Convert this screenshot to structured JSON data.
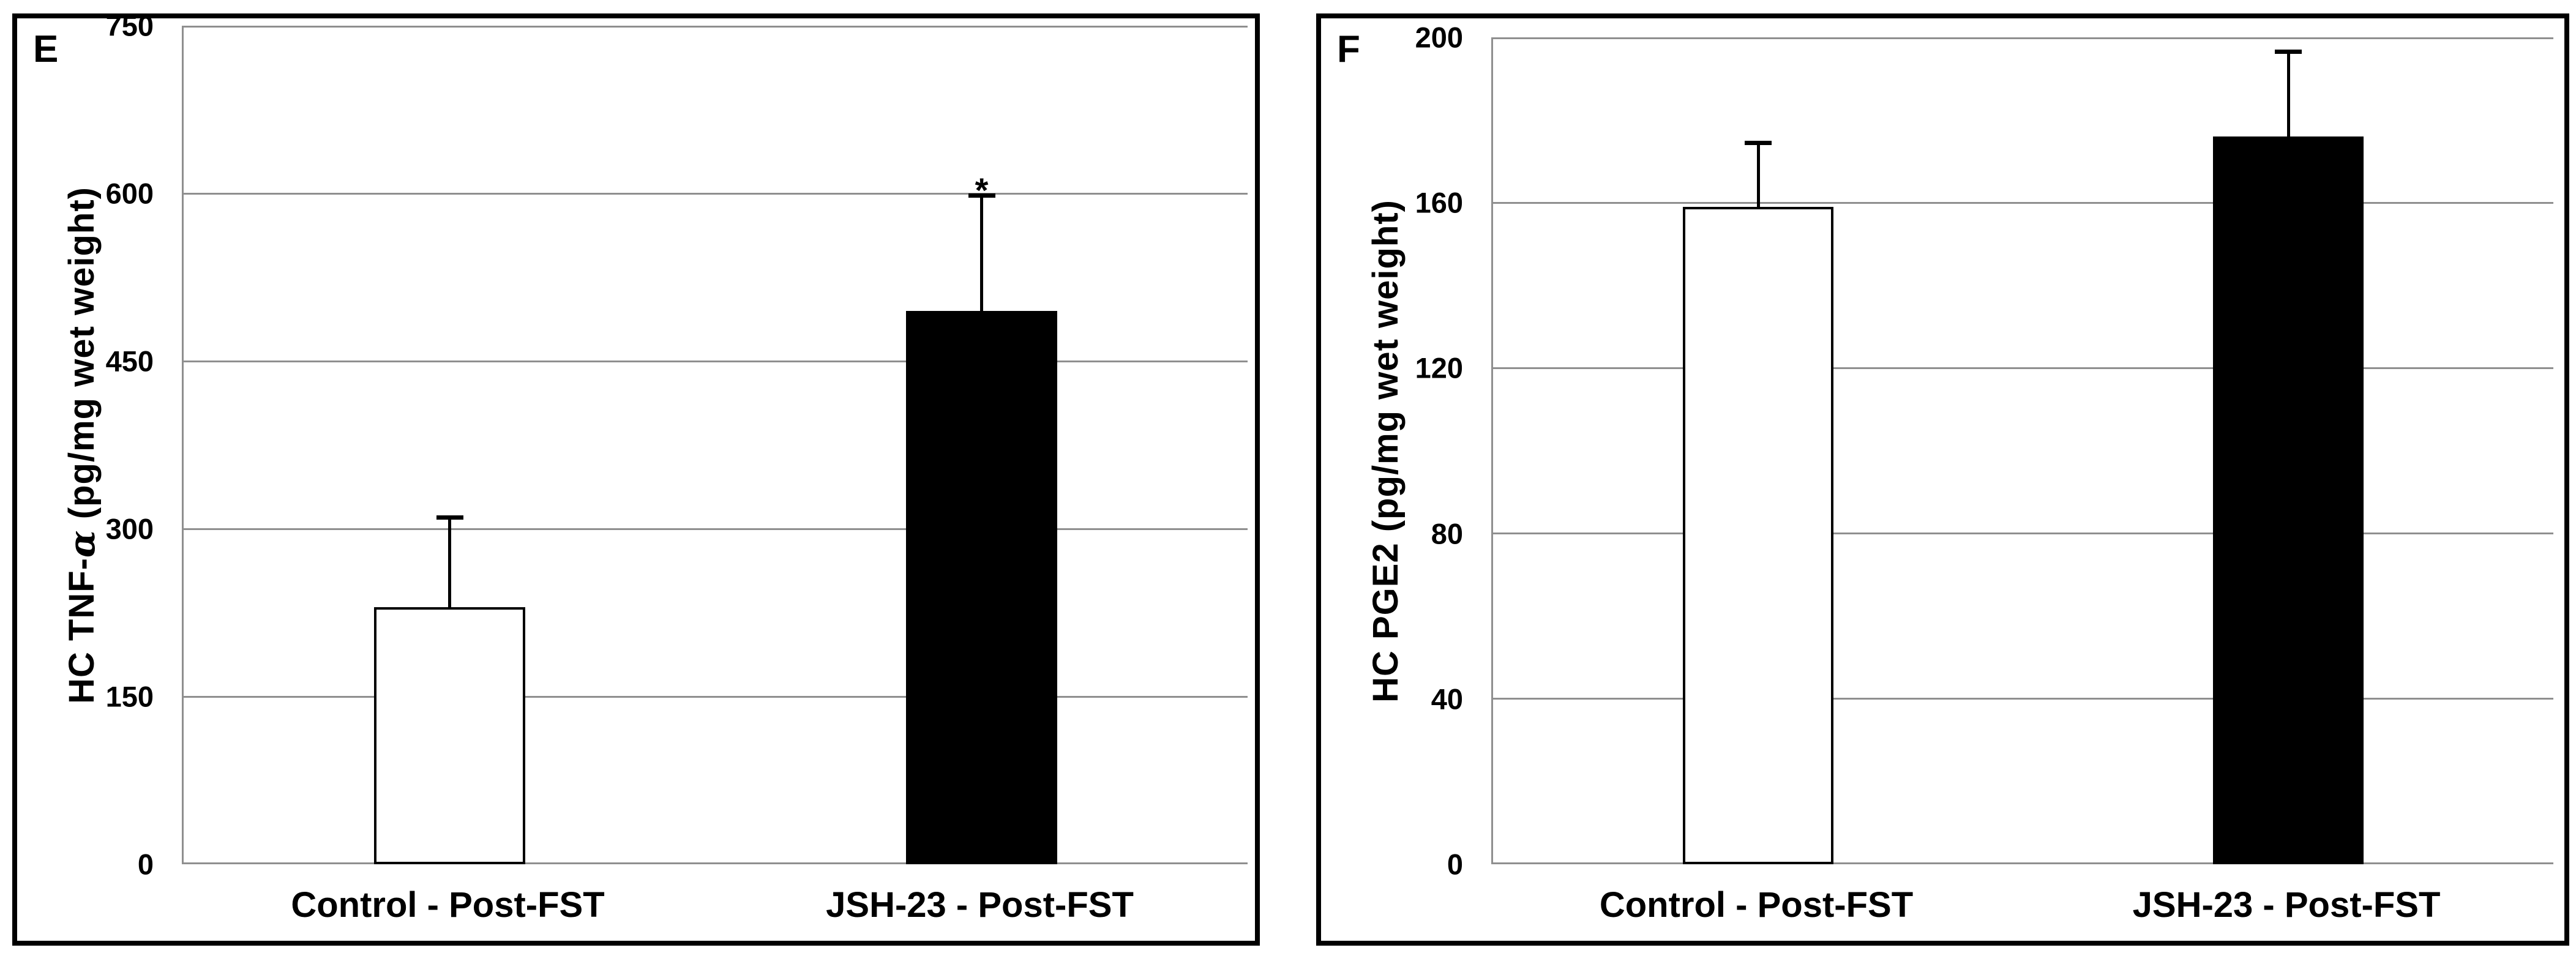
{
  "figure": {
    "description": "Two-panel bar chart figure, panels E and F",
    "background": "#ffffff"
  },
  "colors": {
    "frame": "#000000",
    "gridline": "#8f8f8f",
    "text": "#000000",
    "control_bar_fill": "#ffffff",
    "jsh_bar_fill": "#000000",
    "bar_border": "#000000",
    "error_bar": "#000000"
  },
  "chart_data": [
    {
      "type": "bar",
      "panel_label": "E",
      "title": "",
      "xlabel": "",
      "ylabel": "HC TNF-α (pg/mg wet weight)",
      "ylabel_parts": {
        "prefix": "HC TNF-",
        "alpha": "α",
        "suffix": " (pg/mg wet weight)"
      },
      "ylim": [
        0,
        750
      ],
      "yticks": [
        0,
        150,
        300,
        450,
        600,
        750
      ],
      "grid": true,
      "legend": "none",
      "categories": [
        "Control - Post-FST",
        "JSH-23 - Post-FST"
      ],
      "values": [
        230,
        495
      ],
      "errors_upper": [
        82,
        105
      ],
      "bar_fills": [
        "#ffffff",
        "#000000"
      ],
      "annotations": [
        {
          "text": "*",
          "category_index": 1,
          "y": 615
        }
      ],
      "layout": {
        "bar_centers": [
          0.25,
          0.75
        ],
        "bar_width_frac": 0.142
      }
    },
    {
      "type": "bar",
      "panel_label": "F",
      "title": "",
      "xlabel": "",
      "ylabel": "HC PGE2 (pg/mg wet weight)",
      "ylabel_parts": {
        "prefix": "HC PGE2 (pg/mg wet weight)",
        "alpha": "",
        "suffix": ""
      },
      "ylim": [
        0,
        200
      ],
      "yticks": [
        0,
        40,
        80,
        120,
        160,
        200
      ],
      "grid": true,
      "legend": "none",
      "categories": [
        "Control - Post-FST",
        "JSH-23 - Post-FST"
      ],
      "values": [
        159,
        176
      ],
      "errors_upper": [
        16,
        21
      ],
      "bar_fills": [
        "#ffffff",
        "#000000"
      ],
      "annotations": [],
      "layout": {
        "bar_centers": [
          0.25,
          0.75
        ],
        "bar_width_frac": 0.142
      }
    }
  ]
}
